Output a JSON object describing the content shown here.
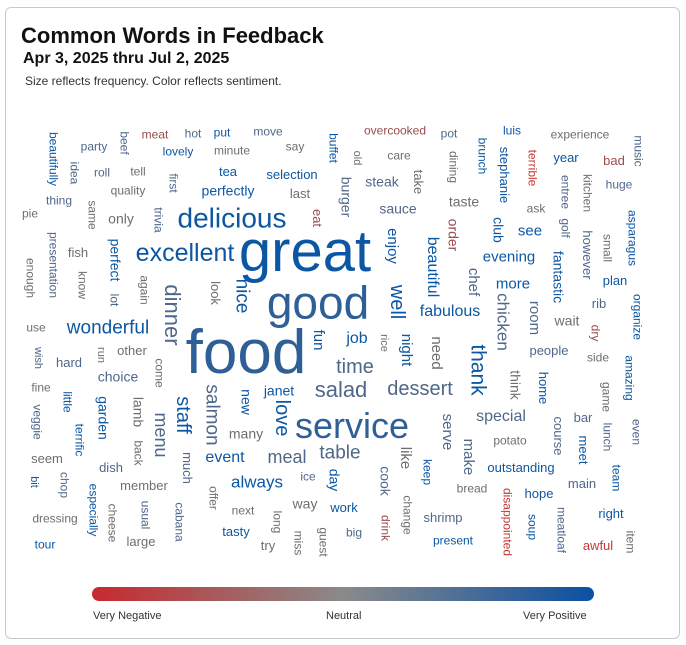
{
  "title": "Common Words in Feedback",
  "subtitle": "Apr 3, 2025 thru Jul 2, 2025",
  "note": "Size reflects frequency. Color reflects sentiment.",
  "legend": {
    "left": "Very Negative",
    "center": "Neutral",
    "right": "Very Positive",
    "colors": [
      "#c62a2f",
      "#8a8a8a",
      "#0a50a3"
    ]
  },
  "chart_data": {
    "type": "wordcloud",
    "palette": {
      "B": "#0b57a4",
      "M": "#2f5f97",
      "G": "#4f6789",
      "N": "#6e6e6e",
      "R": "#9a4b4b",
      "X": "#c23a35"
    },
    "words": [
      {
        "t": "great",
        "c": "B"
      },
      {
        "t": "good",
        "c": "M"
      },
      {
        "t": "food",
        "c": "M"
      },
      {
        "t": "service",
        "c": "M"
      },
      {
        "t": "delicious",
        "c": "B"
      },
      {
        "t": "excellent",
        "c": "B"
      },
      {
        "t": "wonderful",
        "c": "B"
      },
      {
        "t": "dinner",
        "c": "G"
      },
      {
        "t": "meat",
        "c": "R"
      },
      {
        "t": "hot",
        "c": "G"
      },
      {
        "t": "put",
        "c": "B"
      },
      {
        "t": "move",
        "c": "G"
      },
      {
        "t": "party",
        "c": "G"
      },
      {
        "t": "lovely",
        "c": "B"
      },
      {
        "t": "minute",
        "c": "N"
      },
      {
        "t": "say",
        "c": "N"
      },
      {
        "t": "roll",
        "c": "G"
      },
      {
        "t": "tell",
        "c": "N"
      },
      {
        "t": "tea",
        "c": "B"
      },
      {
        "t": "selection",
        "c": "B"
      },
      {
        "t": "quality",
        "c": "N"
      },
      {
        "t": "perfectly",
        "c": "B"
      },
      {
        "t": "last",
        "c": "N"
      },
      {
        "t": "thing",
        "c": "G"
      },
      {
        "t": "pie",
        "c": "N"
      },
      {
        "t": "only",
        "c": "N"
      },
      {
        "t": "fish",
        "c": "N"
      },
      {
        "t": "use",
        "c": "N"
      },
      {
        "t": "beautifully",
        "c": "B"
      },
      {
        "t": "idea",
        "c": "G"
      },
      {
        "t": "beef",
        "c": "G"
      },
      {
        "t": "first",
        "c": "G"
      },
      {
        "t": "buffet",
        "c": "B"
      },
      {
        "t": "same",
        "c": "N"
      },
      {
        "t": "trivia",
        "c": "G"
      },
      {
        "t": "eat",
        "c": "R"
      },
      {
        "t": "presentation",
        "c": "G"
      },
      {
        "t": "enough",
        "c": "N"
      },
      {
        "t": "know",
        "c": "N"
      },
      {
        "t": "perfect",
        "c": "B"
      },
      {
        "t": "lot",
        "c": "G"
      },
      {
        "t": "again",
        "c": "N"
      },
      {
        "t": "look",
        "c": "N"
      },
      {
        "t": "nice",
        "c": "B"
      },
      {
        "t": "burger",
        "c": "G"
      },
      {
        "t": "overcooked",
        "c": "R"
      },
      {
        "t": "pot",
        "c": "G"
      },
      {
        "t": "luis",
        "c": "B"
      },
      {
        "t": "experience",
        "c": "N"
      },
      {
        "t": "care",
        "c": "N"
      },
      {
        "t": "year",
        "c": "B"
      },
      {
        "t": "bad",
        "c": "R"
      },
      {
        "t": "steak",
        "c": "G"
      },
      {
        "t": "huge",
        "c": "G"
      },
      {
        "t": "taste",
        "c": "N"
      },
      {
        "t": "sauce",
        "c": "G"
      },
      {
        "t": "ask",
        "c": "N"
      },
      {
        "t": "see",
        "c": "B"
      },
      {
        "t": "evening",
        "c": "B"
      },
      {
        "t": "more",
        "c": "B"
      },
      {
        "t": "plan",
        "c": "B"
      },
      {
        "t": "fabulous",
        "c": "B"
      },
      {
        "t": "rib",
        "c": "G"
      },
      {
        "t": "wait",
        "c": "N"
      },
      {
        "t": "job",
        "c": "B"
      },
      {
        "t": "time",
        "c": "G"
      },
      {
        "t": "old",
        "c": "N"
      },
      {
        "t": "brunch",
        "c": "B"
      },
      {
        "t": "stephanie",
        "c": "B"
      },
      {
        "t": "terrible",
        "c": "X"
      },
      {
        "t": "music",
        "c": "G"
      },
      {
        "t": "dining",
        "c": "N"
      },
      {
        "t": "take",
        "c": "N"
      },
      {
        "t": "entree",
        "c": "G"
      },
      {
        "t": "kitchen",
        "c": "N"
      },
      {
        "t": "enjoy",
        "c": "B"
      },
      {
        "t": "order",
        "c": "R"
      },
      {
        "t": "club",
        "c": "B"
      },
      {
        "t": "golf",
        "c": "G"
      },
      {
        "t": "however",
        "c": "G"
      },
      {
        "t": "small",
        "c": "N"
      },
      {
        "t": "asparagus",
        "c": "B"
      },
      {
        "t": "beautiful",
        "c": "B"
      },
      {
        "t": "well",
        "c": "B"
      },
      {
        "t": "chef",
        "c": "G"
      },
      {
        "t": "fantastic",
        "c": "B"
      },
      {
        "t": "chicken",
        "c": "G"
      },
      {
        "t": "room",
        "c": "G"
      },
      {
        "t": "organize",
        "c": "B"
      },
      {
        "t": "dry",
        "c": "R"
      },
      {
        "t": "other",
        "c": "N"
      },
      {
        "t": "hard",
        "c": "G"
      },
      {
        "t": "choice",
        "c": "G"
      },
      {
        "t": "fine",
        "c": "N"
      },
      {
        "t": "janet",
        "c": "B"
      },
      {
        "t": "salad",
        "c": "G"
      },
      {
        "t": "many",
        "c": "N"
      },
      {
        "t": "seem",
        "c": "N"
      },
      {
        "t": "event",
        "c": "B"
      },
      {
        "t": "meal",
        "c": "G"
      },
      {
        "t": "dish",
        "c": "G"
      },
      {
        "t": "always",
        "c": "B"
      },
      {
        "t": "member",
        "c": "N"
      },
      {
        "t": "ice",
        "c": "G"
      },
      {
        "t": "way",
        "c": "N"
      },
      {
        "t": "next",
        "c": "N"
      },
      {
        "t": "dressing",
        "c": "N"
      },
      {
        "t": "tasty",
        "c": "B"
      },
      {
        "t": "tour",
        "c": "B"
      },
      {
        "t": "large",
        "c": "N"
      },
      {
        "t": "try",
        "c": "N"
      },
      {
        "t": "table",
        "c": "G"
      },
      {
        "t": "wish",
        "c": "G"
      },
      {
        "t": "run",
        "c": "N"
      },
      {
        "t": "come",
        "c": "N"
      },
      {
        "t": "little",
        "c": "B"
      },
      {
        "t": "veggie",
        "c": "G"
      },
      {
        "t": "terrific",
        "c": "B"
      },
      {
        "t": "garden",
        "c": "B"
      },
      {
        "t": "lamb",
        "c": "N"
      },
      {
        "t": "back",
        "c": "N"
      },
      {
        "t": "menu",
        "c": "G"
      },
      {
        "t": "staff",
        "c": "B"
      },
      {
        "t": "salmon",
        "c": "G"
      },
      {
        "t": "new",
        "c": "B"
      },
      {
        "t": "love",
        "c": "B"
      },
      {
        "t": "much",
        "c": "G"
      },
      {
        "t": "bit",
        "c": "B"
      },
      {
        "t": "chop",
        "c": "G"
      },
      {
        "t": "especially",
        "c": "B"
      },
      {
        "t": "cheese",
        "c": "N"
      },
      {
        "t": "usual",
        "c": "G"
      },
      {
        "t": "cabana",
        "c": "G"
      },
      {
        "t": "offer",
        "c": "N"
      },
      {
        "t": "long",
        "c": "N"
      },
      {
        "t": "miss",
        "c": "N"
      },
      {
        "t": "guest",
        "c": "N"
      },
      {
        "t": "fun",
        "c": "B"
      },
      {
        "t": "day",
        "c": "B"
      },
      {
        "t": "dessert",
        "c": "G"
      },
      {
        "t": "people",
        "c": "G"
      },
      {
        "t": "side",
        "c": "N"
      },
      {
        "t": "special",
        "c": "G"
      },
      {
        "t": "bar",
        "c": "G"
      },
      {
        "t": "potato",
        "c": "N"
      },
      {
        "t": "outstanding",
        "c": "B"
      },
      {
        "t": "main",
        "c": "G"
      },
      {
        "t": "bread",
        "c": "N"
      },
      {
        "t": "hope",
        "c": "B"
      },
      {
        "t": "work",
        "c": "B"
      },
      {
        "t": "right",
        "c": "B"
      },
      {
        "t": "shrimp",
        "c": "G"
      },
      {
        "t": "big",
        "c": "G"
      },
      {
        "t": "present",
        "c": "B"
      },
      {
        "t": "awful",
        "c": "X"
      },
      {
        "t": "rice",
        "c": "N"
      },
      {
        "t": "night",
        "c": "B"
      },
      {
        "t": "need",
        "c": "N"
      },
      {
        "t": "thank",
        "c": "B"
      },
      {
        "t": "think",
        "c": "N"
      },
      {
        "t": "home",
        "c": "B"
      },
      {
        "t": "game",
        "c": "N"
      },
      {
        "t": "amazing",
        "c": "B"
      },
      {
        "t": "serve",
        "c": "G"
      },
      {
        "t": "like",
        "c": "N"
      },
      {
        "t": "make",
        "c": "G"
      },
      {
        "t": "course",
        "c": "G"
      },
      {
        "t": "meet",
        "c": "B"
      },
      {
        "t": "lunch",
        "c": "G"
      },
      {
        "t": "even",
        "c": "G"
      },
      {
        "t": "team",
        "c": "B"
      },
      {
        "t": "cook",
        "c": "G"
      },
      {
        "t": "keep",
        "c": "B"
      },
      {
        "t": "change",
        "c": "N"
      },
      {
        "t": "drink",
        "c": "R"
      },
      {
        "t": "disappointed",
        "c": "X"
      },
      {
        "t": "soup",
        "c": "B"
      },
      {
        "t": "meatloaf",
        "c": "G"
      },
      {
        "t": "item",
        "c": "N"
      }
    ]
  }
}
